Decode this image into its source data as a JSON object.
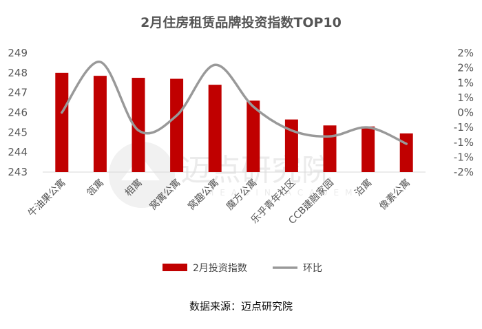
{
  "title": "2月住房租赁品牌投资指数TOP10",
  "source": "数据来源：迈点研究院",
  "watermark": {
    "cn": "迈点研究院",
    "en": "MEADIN ACADEMY"
  },
  "colors": {
    "bar": "#c00000",
    "line": "#999999",
    "axis": "#d9d9d9",
    "text": "#555555"
  },
  "chart_data": {
    "type": "bar+line",
    "title": "2月住房租赁品牌投资指数TOP10",
    "categories": [
      "牛油果公寓",
      "瓴寓",
      "相寓",
      "窝寓公寓",
      "窝趣公寓",
      "魔方公寓",
      "乐乎青年社区",
      "CCB建融家园",
      "泊寓",
      "像素公寓"
    ],
    "series": [
      {
        "name": "2月投资指数",
        "type": "bar",
        "axis": "left",
        "values": [
          248.0,
          247.85,
          247.75,
          247.7,
          247.4,
          246.6,
          245.65,
          245.35,
          245.3,
          244.95
        ]
      },
      {
        "name": "环比",
        "type": "line",
        "axis": "right",
        "smooth": true,
        "values": [
          0.0,
          1.7,
          -0.6,
          -0.1,
          1.6,
          0.2,
          -0.6,
          -0.8,
          -0.5,
          -1.05
        ]
      }
    ],
    "y_left": {
      "min": 243,
      "max": 249,
      "ticks": [
        "243",
        "244",
        "245",
        "246",
        "247",
        "248",
        "249"
      ]
    },
    "y_right": {
      "min": -2,
      "max": 2,
      "ticks": [
        "-2%",
        "-1%",
        "-1%",
        "-1%",
        "0%",
        "1%",
        "1%",
        "2%",
        "2%"
      ]
    },
    "grid": false,
    "legend": "bottom"
  }
}
